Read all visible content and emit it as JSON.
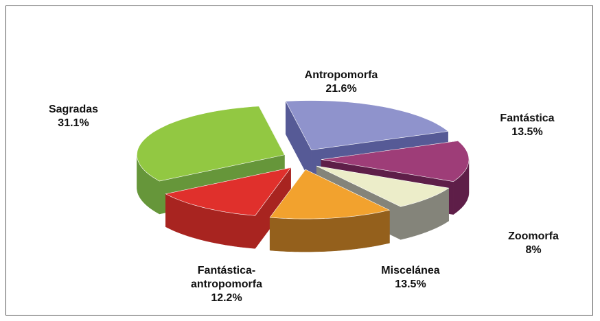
{
  "chart_data": {
    "type": "pie3d",
    "categories": [
      "Antropomorfa",
      "Fantástica",
      "Zoomorfa",
      "Miscelánea",
      "Fantástica-antropomorfa",
      "Sagradas"
    ],
    "values": [
      21.6,
      13.5,
      8,
      13.5,
      12.2,
      31.1
    ],
    "value_labels": [
      "21.6%",
      "13.5%",
      "8%",
      "13.5%",
      "12.2%",
      "31.1%"
    ],
    "colors": [
      "#8f93cc",
      "#9e3d78",
      "#ecedc9",
      "#f2a22e",
      "#e0302c",
      "#92c842"
    ],
    "side_colors": [
      "#565a96",
      "#5e1e48",
      "#84847a",
      "#94601c",
      "#a82420",
      "#66963a"
    ]
  }
}
